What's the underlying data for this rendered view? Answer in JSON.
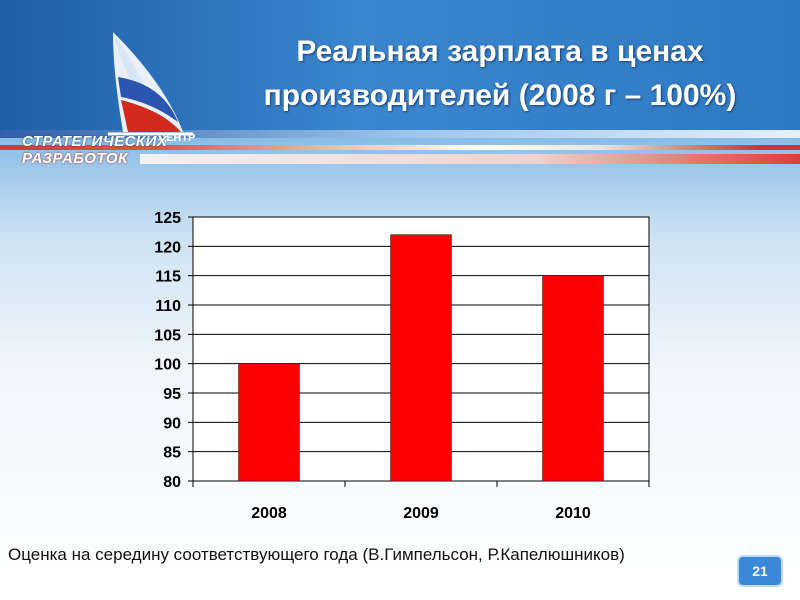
{
  "slide": {
    "title_line1": "Реальная зарплата в ценах",
    "title_line2": "производителей (2008 г – 100%)",
    "footnote": "Оценка на середину соответствующего года (В.Гимпельсон, Р.Капелюшников)",
    "page_number": "21"
  },
  "logo": {
    "line1": "СТРАТЕГИЧЕСКИХ",
    "line2": "РАЗРАБОТОК",
    "center_word": "ЦЕНТР"
  },
  "chart_data": {
    "type": "bar",
    "categories": [
      "2008",
      "2009",
      "2010"
    ],
    "values": [
      100,
      122,
      115
    ],
    "ylim": [
      80,
      125
    ],
    "yticks": [
      80,
      85,
      90,
      95,
      100,
      105,
      110,
      115,
      120,
      125
    ],
    "grid": true,
    "bar_color": "#ff0000",
    "xlabel": "",
    "ylabel": ""
  }
}
